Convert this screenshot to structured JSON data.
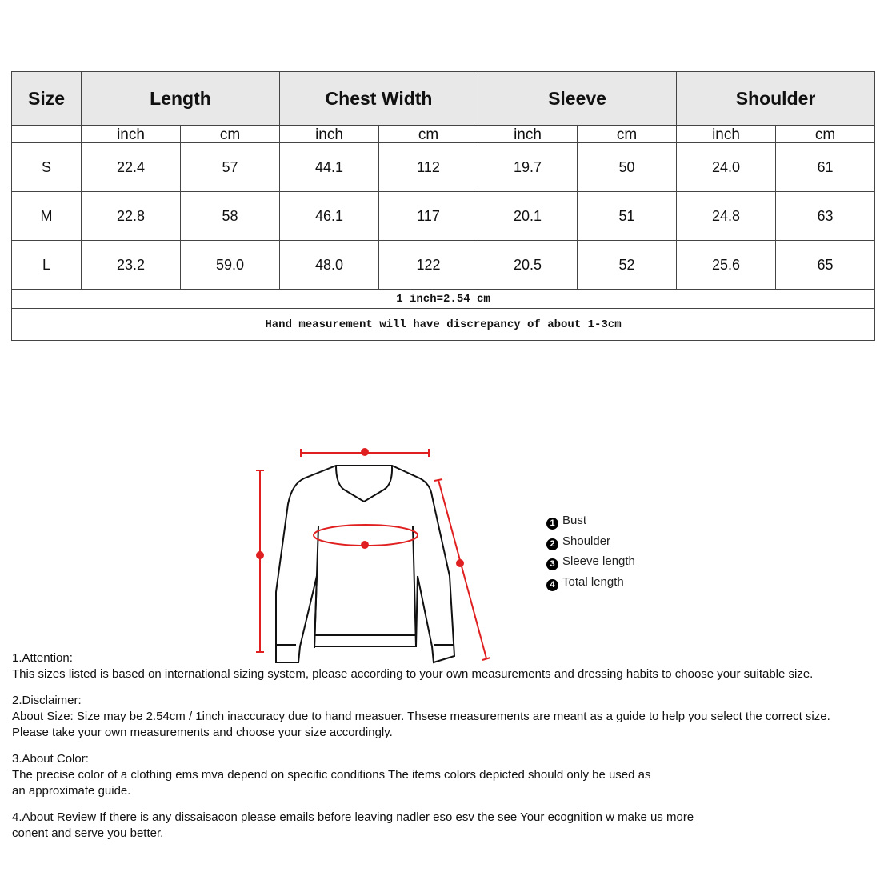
{
  "table": {
    "headers": [
      "Size",
      "Length",
      "Chest Width",
      "Sleeve",
      "Shoulder"
    ],
    "units": [
      "inch",
      "cm",
      "inch",
      "cm",
      "inch",
      "cm",
      "inch",
      "cm"
    ],
    "rows": [
      [
        "S",
        "22.4",
        "57",
        "44.1",
        "112",
        "19.7",
        "50",
        "24.0",
        "61"
      ],
      [
        "M",
        "22.8",
        "58",
        "46.1",
        "117",
        "20.1",
        "51",
        "24.8",
        "63"
      ],
      [
        "L",
        "23.2",
        "59.0",
        "48.0",
        "122",
        "20.5",
        "52",
        "25.6",
        "65"
      ]
    ],
    "conversion": "1 inch=2.54 cm",
    "discrepancy": "Hand measurement will have discrepancy of about 1-3cm"
  },
  "legend": [
    {
      "num": "1",
      "label": "Bust"
    },
    {
      "num": "2",
      "label": "Shoulder"
    },
    {
      "num": "3",
      "label": "Sleeve length"
    },
    {
      "num": "4",
      "label": "Total length"
    }
  ],
  "colors": {
    "measure_line": "#e02020",
    "header_bg": "#e8e8e8"
  },
  "notes": [
    {
      "title": "1.Attention:",
      "lines": [
        "This sizes listed is based on international sizing system, please according to your own measurements and dressing habits to choose your suitable size."
      ]
    },
    {
      "title": "2.Disclaimer:",
      "lines": [
        "About Size: Size may be 2.54cm / 1inch inaccuracy due to hand measuer. Thsese measurements are meant as a guide to help you select the correct size.",
        "Please take your own measurements and choose your size accordingly."
      ]
    },
    {
      "title": "3.About Color:",
      "lines": [
        "The precise color of a clothing ems mva depend on specific conditions The items colors depicted should only be used as",
        "an approximate guide."
      ]
    },
    {
      "title": "4.About Review If there is any dissaisacon please emails before leaving nadler eso esv the see Your ecognition w make us more",
      "lines": [
        "conent and serve you better."
      ]
    }
  ]
}
